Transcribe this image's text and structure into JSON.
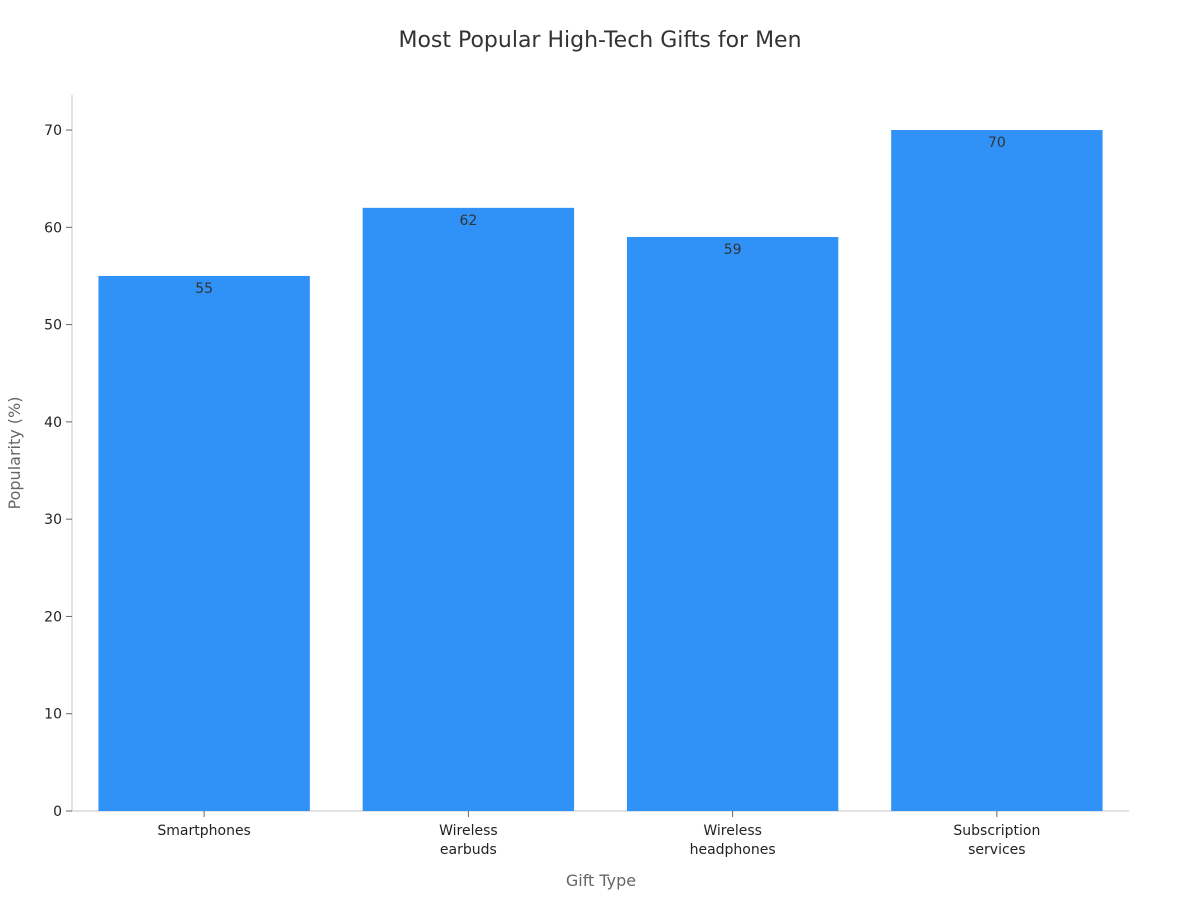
{
  "chart_data": {
    "type": "bar",
    "title": "Most Popular High-Tech Gifts for Men",
    "xlabel": "Gift Type",
    "ylabel": "Popularity (%)",
    "categories": [
      [
        "Smartphones"
      ],
      [
        "Wireless",
        "earbuds"
      ],
      [
        "Wireless",
        "headphones"
      ],
      [
        "Subscription",
        "services"
      ]
    ],
    "values": [
      55,
      62,
      59,
      70
    ],
    "yticks": [
      0,
      10,
      20,
      30,
      40,
      50,
      60,
      70
    ],
    "ylim": [
      0,
      73.6
    ],
    "grid": false,
    "bar_color": "#3091F7",
    "data_labels": [
      "55",
      "62",
      "59",
      "70"
    ]
  }
}
